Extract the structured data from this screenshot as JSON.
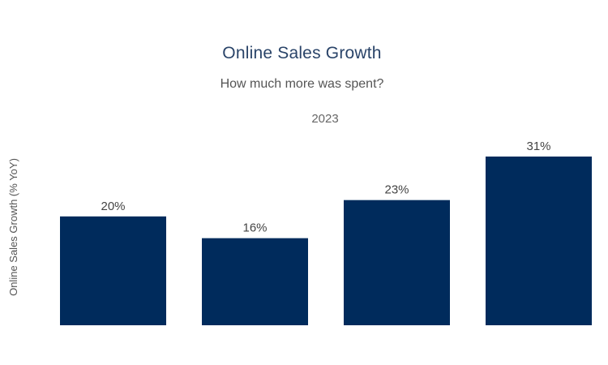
{
  "chart_data": {
    "type": "bar",
    "title": "Online Sales Growth",
    "subtitle": "How much more was spent?",
    "facet_label": "2023",
    "ylabel": "Online Sales Growth (% YoY)",
    "xlabel": "",
    "categories": [
      "",
      "",
      "",
      ""
    ],
    "values": [
      20,
      16,
      23,
      31
    ],
    "data_labels": [
      "20%",
      "16%",
      "23%",
      "31%"
    ],
    "ylim": [
      0,
      31
    ],
    "grid": false,
    "legend": "none",
    "bar_color": "#002b5c"
  }
}
